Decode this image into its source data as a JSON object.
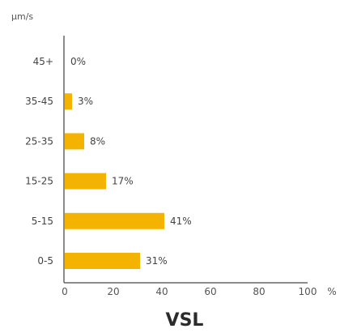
{
  "chart_data": {
    "type": "bar",
    "orientation": "horizontal",
    "title": "",
    "ylabel": "μm/s",
    "xlabel": "VSL",
    "x_unit": "%",
    "categories": [
      "45+",
      "35-45",
      "25-35",
      "15-25",
      "5-15",
      "0-5"
    ],
    "values": [
      0,
      3,
      8,
      17,
      41,
      31
    ],
    "value_labels": [
      "0%",
      "3%",
      "8%",
      "17%",
      "41%",
      "31%"
    ],
    "xlim": [
      0,
      100
    ],
    "xticks": [
      "0",
      "20",
      "40",
      "60",
      "80",
      "100"
    ],
    "grid": false,
    "bar_color": "#f5b301"
  }
}
